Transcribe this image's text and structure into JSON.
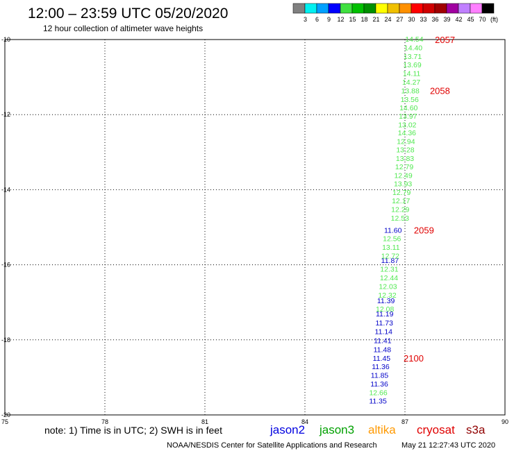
{
  "header": {
    "title": "12:00 – 23:59 UTC 05/20/2020",
    "subtitle": "12 hour collection of altimeter wave heights"
  },
  "colorbar": {
    "swatches": [
      "#808080",
      "#00f0f0",
      "#00a0ff",
      "#0000ff",
      "#40e040",
      "#00c000",
      "#009000",
      "#ffff00",
      "#f0c000",
      "#ff9000",
      "#ff0000",
      "#d00000",
      "#a00000",
      "#a000a0",
      "#c080ff",
      "#ff80ff",
      "#000000"
    ],
    "labels": [
      "3",
      "6",
      "9",
      "12",
      "15",
      "18",
      "21",
      "24",
      "27",
      "30",
      "33",
      "36",
      "39",
      "42",
      "45",
      "70",
      "(ft)"
    ]
  },
  "chart_data": {
    "type": "scatter",
    "title": "12:00 – 23:59 UTC 05/20/2020",
    "subtitle": "12 hour collection of altimeter wave heights",
    "xlim": [
      75,
      90
    ],
    "ylim": [
      -20,
      -10
    ],
    "x_ticks": [
      "75",
      "78",
      "81",
      "84",
      "87",
      "90"
    ],
    "y_ticks": [
      "-10",
      "-12",
      "-14",
      "-16",
      "-18",
      "-20"
    ],
    "grid": true,
    "series": [
      {
        "name": "jason2",
        "color": "#0000c8",
        "points": [
          {
            "x": 86.64,
            "y": -15.07,
            "label": "11.60"
          },
          {
            "x": 86.55,
            "y": -15.88,
            "label": "11.87"
          },
          {
            "x": 86.43,
            "y": -16.95,
            "label": "11.39"
          },
          {
            "x": 86.39,
            "y": -17.3,
            "label": "11.19"
          },
          {
            "x": 86.38,
            "y": -17.54,
            "label": "11.73"
          },
          {
            "x": 86.36,
            "y": -17.77,
            "label": "11.14"
          },
          {
            "x": 86.33,
            "y": -18.01,
            "label": "11.41"
          },
          {
            "x": 86.32,
            "y": -18.25,
            "label": "11.48"
          },
          {
            "x": 86.3,
            "y": -18.48,
            "label": "11.45"
          },
          {
            "x": 86.27,
            "y": -18.71,
            "label": "11.36"
          },
          {
            "x": 86.24,
            "y": -18.94,
            "label": "11.85"
          },
          {
            "x": 86.23,
            "y": -19.17,
            "label": "11.36"
          },
          {
            "x": 86.19,
            "y": -19.62,
            "label": "11.35"
          }
        ]
      },
      {
        "name": "jason3",
        "color": "#50e850",
        "points": [
          {
            "x": 87.28,
            "y": -9.98,
            "label": "14.54"
          },
          {
            "x": 87.25,
            "y": -10.21,
            "label": "14.40"
          },
          {
            "x": 87.23,
            "y": -10.44,
            "label": "13.71"
          },
          {
            "x": 87.22,
            "y": -10.67,
            "label": "13.69"
          },
          {
            "x": 87.2,
            "y": -10.9,
            "label": "14.11"
          },
          {
            "x": 87.19,
            "y": -11.13,
            "label": "14.27"
          },
          {
            "x": 87.16,
            "y": -11.36,
            "label": "13.88"
          },
          {
            "x": 87.14,
            "y": -11.59,
            "label": "13.56"
          },
          {
            "x": 87.11,
            "y": -11.81,
            "label": "14.60"
          },
          {
            "x": 87.09,
            "y": -12.03,
            "label": "13.97"
          },
          {
            "x": 87.07,
            "y": -12.26,
            "label": "13.02"
          },
          {
            "x": 87.06,
            "y": -12.48,
            "label": "14.36"
          },
          {
            "x": 87.03,
            "y": -12.71,
            "label": "12.94"
          },
          {
            "x": 87.01,
            "y": -12.93,
            "label": "13.28"
          },
          {
            "x": 87.0,
            "y": -13.16,
            "label": "13.83"
          },
          {
            "x": 86.98,
            "y": -13.38,
            "label": "12.79"
          },
          {
            "x": 86.95,
            "y": -13.61,
            "label": "12.49"
          },
          {
            "x": 86.94,
            "y": -13.84,
            "label": "13.93"
          },
          {
            "x": 86.9,
            "y": -14.07,
            "label": "12.79"
          },
          {
            "x": 86.88,
            "y": -14.29,
            "label": "12.17"
          },
          {
            "x": 86.86,
            "y": -14.52,
            "label": "12.29"
          },
          {
            "x": 86.85,
            "y": -14.75,
            "label": "12.53"
          },
          {
            "x": 86.61,
            "y": -15.3,
            "label": "12.56"
          },
          {
            "x": 86.58,
            "y": -15.53,
            "label": "13.11"
          },
          {
            "x": 86.56,
            "y": -15.76,
            "label": "12.72"
          },
          {
            "x": 86.53,
            "y": -16.11,
            "label": "12.31"
          },
          {
            "x": 86.52,
            "y": -16.34,
            "label": "12.44"
          },
          {
            "x": 86.49,
            "y": -16.57,
            "label": "12.03"
          },
          {
            "x": 86.47,
            "y": -16.8,
            "label": "12.32"
          },
          {
            "x": 86.4,
            "y": -17.17,
            "label": "12.08"
          },
          {
            "x": 86.2,
            "y": -19.4,
            "label": "12.66"
          }
        ]
      }
    ],
    "time_markers": [
      {
        "x": 88.2,
        "y": -10.0,
        "label": "2057"
      },
      {
        "x": 88.05,
        "y": -11.36,
        "label": "2058"
      },
      {
        "x": 87.57,
        "y": -15.07,
        "label": "2059"
      },
      {
        "x": 87.26,
        "y": -18.48,
        "label": "2100"
      }
    ],
    "time_marker_color": "#e00000"
  },
  "footer": {
    "note": "note: 1) Time is in UTC; 2) SWH is in feet",
    "legend": [
      {
        "name": "jason2",
        "color": "#0000e0"
      },
      {
        "name": "jason3",
        "color": "#00a000"
      },
      {
        "name": "altika",
        "color": "#ff9900"
      },
      {
        "name": "cryosat",
        "color": "#e00000"
      },
      {
        "name": "s3a",
        "color": "#900000"
      }
    ],
    "credit": "NOAA/NESDIS Center for Satellite Applications and Research",
    "timestamp": "May 21 12:27:43 UTC 2020"
  }
}
